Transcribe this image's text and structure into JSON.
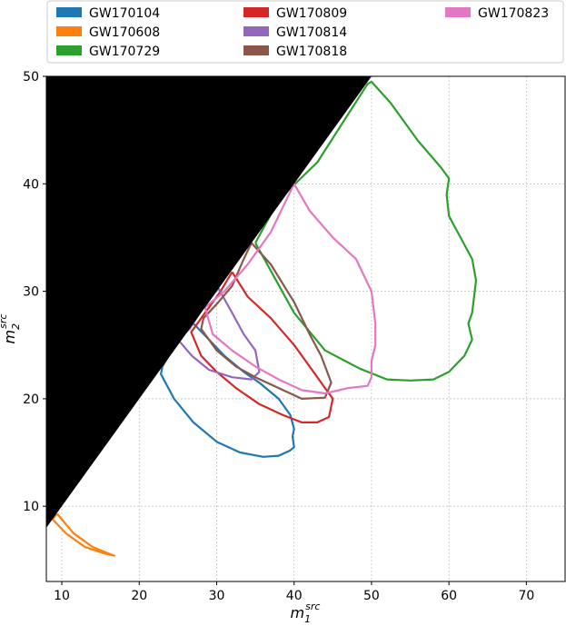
{
  "chart_data": {
    "type": "line",
    "xlabel_base": "m",
    "xlabel_sub": "1",
    "xlabel_sup": "src",
    "ylabel_base": "m",
    "ylabel_sub": "2",
    "ylabel_sup": "src",
    "xlim": [
      8,
      75
    ],
    "ylim": [
      3,
      50
    ],
    "xticks": [
      10,
      20,
      30,
      40,
      50,
      60,
      70
    ],
    "yticks": [
      10,
      20,
      30,
      40,
      50
    ],
    "grid": true,
    "legend_position": "top",
    "excluded_region": "m2 > m1 (filled black)",
    "series": [
      {
        "name": "GW170104",
        "color": "#1f77b4",
        "points": [
          [
            27,
            27
          ],
          [
            25,
            25.5
          ],
          [
            23,
            23
          ],
          [
            22.8,
            22.3
          ],
          [
            24.5,
            20
          ],
          [
            27,
            17.8
          ],
          [
            30,
            16
          ],
          [
            33,
            15
          ],
          [
            36,
            14.6
          ],
          [
            38,
            14.7
          ],
          [
            39.5,
            15.2
          ],
          [
            40,
            15.5
          ],
          [
            39.8,
            16.5
          ],
          [
            40,
            17.2
          ],
          [
            39.5,
            18.5
          ],
          [
            38,
            20
          ],
          [
            35.5,
            21.5
          ],
          [
            33.5,
            22.5
          ],
          [
            31,
            24
          ],
          [
            29,
            25.5
          ],
          [
            27,
            27
          ]
        ]
      },
      {
        "name": "GW170608",
        "color": "#ff7f0e",
        "points": [
          [
            9.4,
            9.3
          ],
          [
            11.5,
            7.5
          ],
          [
            14,
            6.2
          ],
          [
            16,
            5.6
          ],
          [
            16.8,
            5.4
          ],
          [
            15.5,
            5.6
          ],
          [
            13,
            6.2
          ],
          [
            10.5,
            7.5
          ],
          [
            8.8,
            8.8
          ],
          [
            9.4,
            9.3
          ]
        ]
      },
      {
        "name": "GW170729",
        "color": "#2ca02c",
        "points": [
          [
            35,
            34.5
          ],
          [
            40,
            28
          ],
          [
            44,
            24.5
          ],
          [
            48.5,
            22.8
          ],
          [
            52,
            21.8
          ],
          [
            55,
            21.7
          ],
          [
            58,
            21.8
          ],
          [
            60,
            22.5
          ],
          [
            62,
            24
          ],
          [
            63,
            25.5
          ],
          [
            62.5,
            27
          ],
          [
            63,
            28
          ],
          [
            63.5,
            31
          ],
          [
            63,
            33
          ],
          [
            61.5,
            35
          ],
          [
            60,
            37
          ],
          [
            59.7,
            39
          ],
          [
            60,
            40.5
          ],
          [
            59,
            41.5
          ],
          [
            56,
            44
          ],
          [
            52.5,
            47.5
          ],
          [
            50,
            49.5
          ],
          [
            49.5,
            49.3
          ],
          [
            47,
            46.5
          ],
          [
            43,
            42
          ],
          [
            38,
            38.5
          ],
          [
            35,
            34.5
          ]
        ]
      },
      {
        "name": "GW170809",
        "color": "#d62728",
        "points": [
          [
            32,
            31.8
          ],
          [
            34,
            29.5
          ],
          [
            37,
            27.5
          ],
          [
            40,
            25
          ],
          [
            42,
            23
          ],
          [
            44,
            21
          ],
          [
            45,
            20
          ],
          [
            44.5,
            18.3
          ],
          [
            43,
            17.8
          ],
          [
            41,
            17.8
          ],
          [
            38.5,
            18.5
          ],
          [
            35.5,
            19.5
          ],
          [
            32.5,
            21
          ],
          [
            30,
            22.5
          ],
          [
            28,
            24
          ],
          [
            26.7,
            26.2
          ],
          [
            28.5,
            28
          ],
          [
            30.5,
            30
          ],
          [
            32,
            31.8
          ]
        ]
      },
      {
        "name": "GW170814",
        "color": "#9467bd",
        "points": [
          [
            30.2,
            30.3
          ],
          [
            32,
            28
          ],
          [
            33.5,
            26
          ],
          [
            35,
            24.5
          ],
          [
            35.5,
            22.5
          ],
          [
            34.5,
            21.8
          ],
          [
            32,
            22
          ],
          [
            29,
            22.7
          ],
          [
            26.8,
            24
          ],
          [
            25,
            25.5
          ],
          [
            26.5,
            26.5
          ],
          [
            28,
            28.2
          ],
          [
            30.2,
            30.3
          ]
        ]
      },
      {
        "name": "GW170818",
        "color": "#8c564b",
        "points": [
          [
            34.5,
            34.5
          ],
          [
            37,
            32.5
          ],
          [
            40,
            29
          ],
          [
            42,
            26
          ],
          [
            43.5,
            24
          ],
          [
            44.8,
            21.5
          ],
          [
            44,
            20.1
          ],
          [
            41,
            20
          ],
          [
            38,
            21
          ],
          [
            35,
            22
          ],
          [
            32.5,
            23
          ],
          [
            30,
            24.5
          ],
          [
            28,
            26.5
          ],
          [
            28.3,
            27.5
          ],
          [
            30,
            28.8
          ],
          [
            32,
            30.5
          ],
          [
            33.5,
            33
          ],
          [
            34.5,
            34.5
          ]
        ]
      },
      {
        "name": "GW170823",
        "color": "#e377c2",
        "points": [
          [
            40,
            40
          ],
          [
            42,
            37.5
          ],
          [
            45,
            35
          ],
          [
            48,
            33
          ],
          [
            50,
            30
          ],
          [
            50.5,
            27
          ],
          [
            50.5,
            25
          ],
          [
            50,
            23.5
          ],
          [
            50,
            22
          ],
          [
            49.5,
            21.2
          ],
          [
            47,
            21
          ],
          [
            44,
            20.5
          ],
          [
            41,
            20.8
          ],
          [
            38,
            21.8
          ],
          [
            35,
            23
          ],
          [
            32,
            24.5
          ],
          [
            29.5,
            26
          ],
          [
            28.5,
            28.5
          ],
          [
            31,
            30
          ],
          [
            34,
            32.5
          ],
          [
            37,
            35.5
          ],
          [
            40,
            40
          ]
        ]
      }
    ]
  }
}
